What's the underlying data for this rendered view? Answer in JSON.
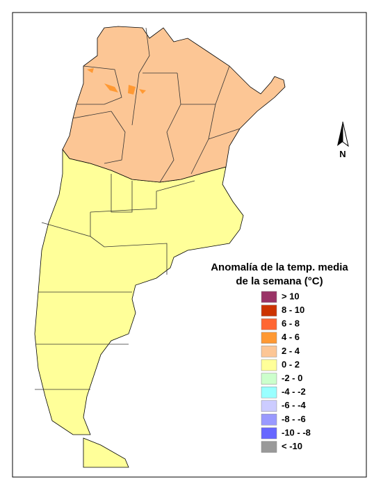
{
  "legend": {
    "title_lines": [
      "Anomalía de la temp. media",
      "de la semana (°C)"
    ],
    "items": [
      {
        "label": "> 10",
        "color": "#993366"
      },
      {
        "label": "8 - 10",
        "color": "#cc3300"
      },
      {
        "label": "6 - 8",
        "color": "#ff6633"
      },
      {
        "label": "4 - 6",
        "color": "#ff9933"
      },
      {
        "label": "2 - 4",
        "color": "#fcc695"
      },
      {
        "label": "0 - 2",
        "color": "#ffff99"
      },
      {
        "label": "-2 - 0",
        "color": "#ccffcc"
      },
      {
        "label": "-4 - -2",
        "color": "#99ffff"
      },
      {
        "label": "-6 - -4",
        "color": "#ccccff"
      },
      {
        "label": "-8 - -6",
        "color": "#9999ff"
      },
      {
        "label": "-10 - -8",
        "color": "#6666ff"
      },
      {
        "label": "< -10",
        "color": "#999999"
      }
    ]
  },
  "compass": {
    "label": "N"
  }
}
